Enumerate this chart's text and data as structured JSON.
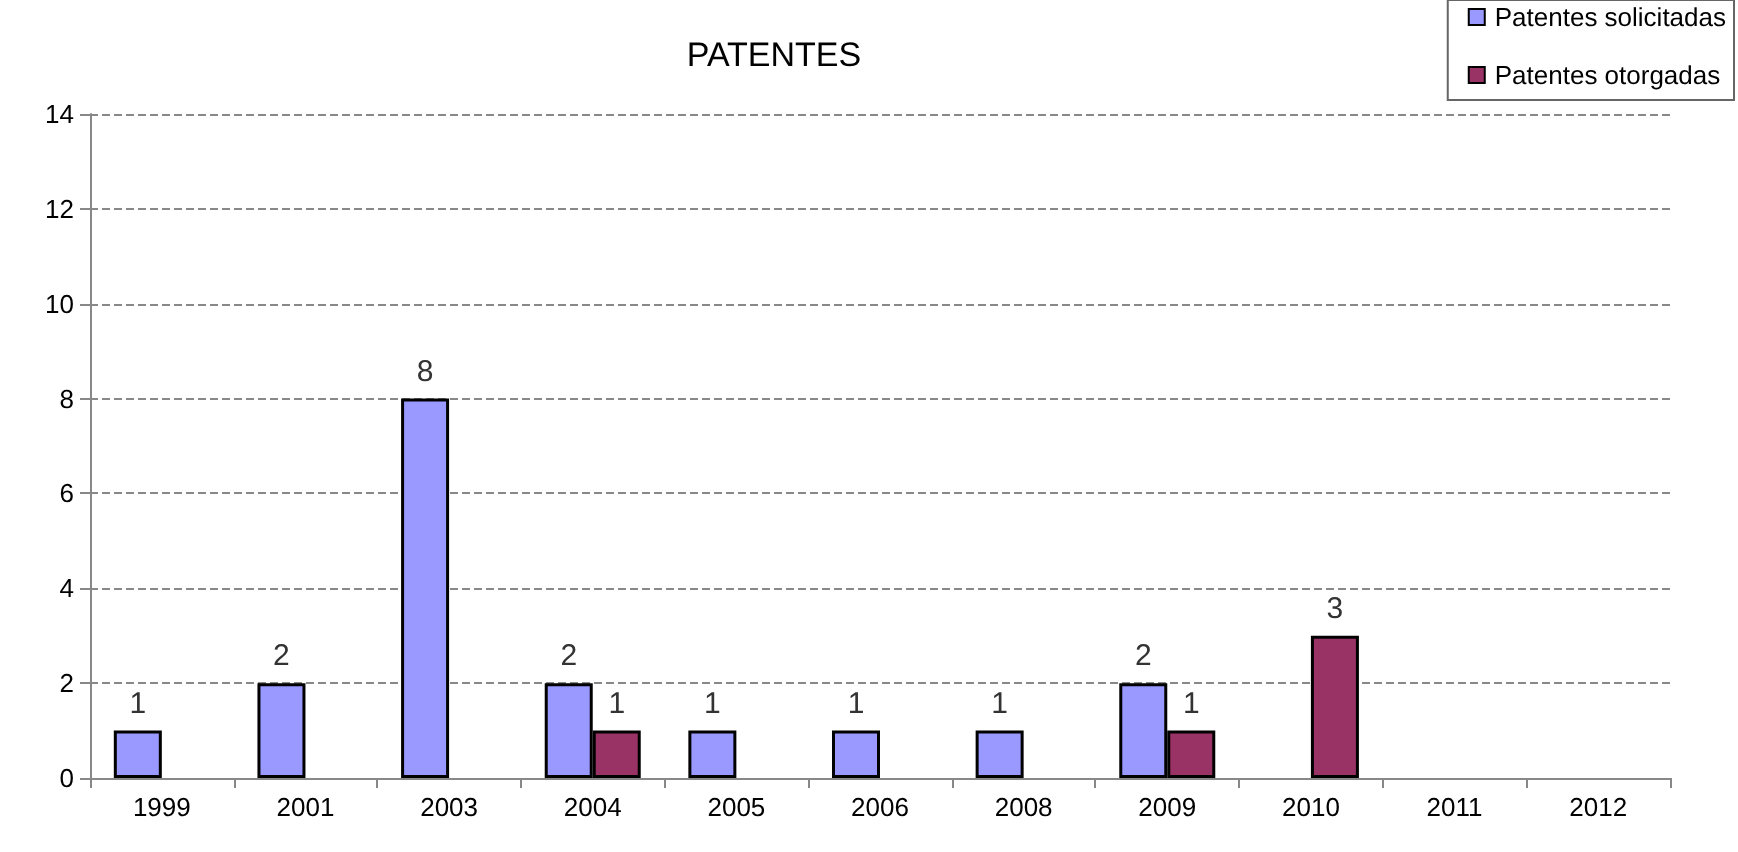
{
  "chart_data": {
    "type": "bar",
    "title": "PATENTES",
    "categories": [
      "1999",
      "2001",
      "2003",
      "2004",
      "2005",
      "2006",
      "2008",
      "2009",
      "2010",
      "2011",
      "2012"
    ],
    "series": [
      {
        "name": "Patentes solicitadas",
        "color": "#9999ff",
        "values": [
          1,
          2,
          8,
          2,
          1,
          1,
          1,
          2,
          null,
          null,
          null
        ]
      },
      {
        "name": "Patentes otorgadas",
        "color": "#993366",
        "values": [
          null,
          null,
          null,
          1,
          null,
          null,
          null,
          1,
          3,
          null,
          null
        ]
      }
    ],
    "ylim": [
      0,
      14
    ],
    "yticks": [
      0,
      2,
      4,
      6,
      8,
      10,
      12,
      14
    ],
    "grid": "y",
    "legend": "top right",
    "data_labels": true
  }
}
